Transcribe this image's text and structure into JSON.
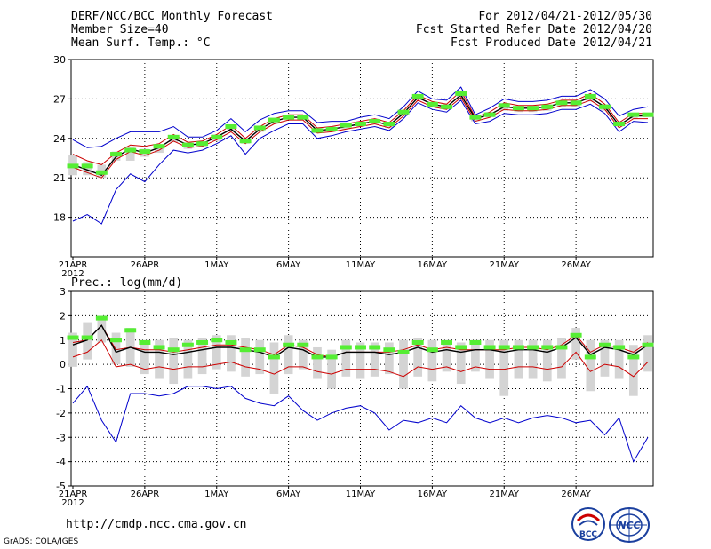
{
  "header": {
    "line1": "DERF/NCC/BCC Monthly Forecast",
    "line2": "Member Size=40",
    "line3": "Mean Surf. Temp.: °C",
    "right1": "For 2012/04/21-2012/05/30",
    "right2": "Fcst Started Refer Date 2012/04/20",
    "right3": "Fcst Produced Date 2012/04/21"
  },
  "footer": {
    "url": "http://cmdp.ncc.cma.gov.cn",
    "credit": "GrADS: COLA/IGES",
    "logo_left_text": "BCC",
    "logo_right_text": "NCC"
  },
  "colors": {
    "max_min": "#0000cc",
    "upper_lower": "#cc0000",
    "mean": "#000000",
    "member_bar": "#d4d4d4",
    "marker": "#55ee33",
    "grid": "#000000"
  },
  "chart_data": [
    {
      "type": "line",
      "title": "",
      "xlabel": "",
      "ylabel": "",
      "ylim": [
        15,
        30
      ],
      "yticks": [
        18,
        21,
        24,
        27,
        30
      ],
      "ytick_labels": [
        "18",
        "21",
        "24",
        "27",
        "30"
      ],
      "xticks": [
        0,
        5,
        10,
        15,
        20,
        25,
        30,
        35
      ],
      "xtick_labels": [
        "21APR",
        "26APR",
        "1MAY",
        "6MAY",
        "11MAY",
        "16MAY",
        "21MAY",
        "26MAY"
      ],
      "year_label": "2012",
      "days": 40,
      "series": [
        {
          "name": "max",
          "color": "#0000cc",
          "values": [
            23.9,
            23.3,
            23.4,
            24.0,
            24.5,
            24.5,
            24.5,
            24.9,
            24.1,
            24.1,
            24.6,
            25.5,
            24.5,
            25.4,
            25.9,
            26.1,
            26.1,
            25.2,
            25.3,
            25.3,
            25.6,
            25.8,
            25.5,
            26.4,
            27.6,
            27.0,
            26.9,
            27.9,
            25.8,
            26.3,
            27.0,
            26.8,
            26.8,
            26.9,
            27.2,
            27.2,
            27.7,
            27.0,
            25.7,
            26.2,
            26.4
          ]
        },
        {
          "name": "upper",
          "color": "#cc0000",
          "values": [
            22.8,
            22.3,
            22.0,
            22.9,
            23.5,
            23.4,
            23.6,
            24.3,
            23.7,
            23.8,
            24.3,
            25.0,
            24.0,
            24.9,
            25.5,
            25.8,
            25.8,
            24.8,
            24.9,
            25.1,
            25.3,
            25.5,
            25.2,
            26.1,
            27.3,
            26.8,
            26.6,
            27.6,
            25.6,
            26.0,
            26.7,
            26.5,
            26.5,
            26.6,
            26.9,
            26.9,
            27.4,
            26.6,
            25.2,
            25.9,
            25.9
          ]
        },
        {
          "name": "mean",
          "color": "#000000",
          "values": [
            22.0,
            21.6,
            21.2,
            22.6,
            23.2,
            22.9,
            23.3,
            24.0,
            23.5,
            23.6,
            24.1,
            24.7,
            23.8,
            24.7,
            25.3,
            25.6,
            25.6,
            24.6,
            24.7,
            24.9,
            25.1,
            25.3,
            25.0,
            25.9,
            27.1,
            26.6,
            26.4,
            27.3,
            25.5,
            25.8,
            26.4,
            26.3,
            26.3,
            26.4,
            26.7,
            26.7,
            27.1,
            26.4,
            25.0,
            25.7,
            25.7
          ]
        },
        {
          "name": "lower",
          "color": "#cc0000",
          "values": [
            21.8,
            21.4,
            21.0,
            22.4,
            23.0,
            22.7,
            23.1,
            23.8,
            23.3,
            23.4,
            23.9,
            24.5,
            23.6,
            24.5,
            25.1,
            25.4,
            25.4,
            24.4,
            24.5,
            24.7,
            24.9,
            25.1,
            24.8,
            25.7,
            26.9,
            26.4,
            26.2,
            27.1,
            25.3,
            25.6,
            26.2,
            26.1,
            26.1,
            26.2,
            26.5,
            26.5,
            26.9,
            26.2,
            24.8,
            25.5,
            25.5
          ]
        },
        {
          "name": "min",
          "color": "#0000cc",
          "values": [
            17.7,
            18.2,
            17.5,
            20.1,
            21.3,
            20.7,
            22.0,
            23.1,
            22.9,
            23.1,
            23.6,
            24.2,
            22.8,
            24.0,
            24.6,
            25.1,
            25.1,
            24.0,
            24.2,
            24.5,
            24.7,
            24.9,
            24.6,
            25.5,
            26.7,
            26.2,
            26.0,
            26.9,
            25.1,
            25.3,
            25.9,
            25.8,
            25.8,
            25.9,
            26.2,
            26.2,
            26.6,
            25.9,
            24.5,
            25.3,
            25.2
          ]
        }
      ],
      "bars_low": [
        21.2,
        21.2,
        21.0,
        22.3,
        22.3,
        22.6,
        22.9,
        23.7,
        23.2,
        23.4,
        23.8,
        24.6,
        23.6,
        24.5,
        25.1,
        25.4,
        25.4,
        24.4,
        24.5,
        24.7,
        24.9,
        25.1,
        24.8,
        25.7,
        26.9,
        26.4,
        26.2,
        27.0,
        25.3,
        25.6,
        26.1,
        26.0,
        26.0,
        26.1,
        26.4,
        26.4,
        26.8,
        26.1,
        24.9,
        25.5,
        25.6
      ],
      "bars_high": [
        22.7,
        22.2,
        22.0,
        23.0,
        23.4,
        23.2,
        23.5,
        24.2,
        23.7,
        23.8,
        24.3,
        25.0,
        24.0,
        24.9,
        25.5,
        25.8,
        25.8,
        24.8,
        24.9,
        25.1,
        25.3,
        25.5,
        25.2,
        26.1,
        27.2,
        26.7,
        26.6,
        27.5,
        25.7,
        26.0,
        26.6,
        26.5,
        26.5,
        26.6,
        26.9,
        26.9,
        27.3,
        26.6,
        25.3,
        25.9,
        25.9
      ],
      "markers": [
        21.9,
        21.9,
        21.4,
        22.8,
        23.1,
        23.0,
        23.4,
        24.1,
        23.5,
        23.6,
        24.1,
        24.9,
        23.8,
        24.8,
        25.4,
        25.6,
        25.6,
        24.6,
        24.7,
        25.0,
        25.1,
        25.3,
        25.1,
        26.0,
        27.2,
        26.6,
        26.4,
        27.4,
        25.6,
        25.8,
        26.5,
        26.3,
        26.3,
        26.4,
        26.7,
        26.7,
        27.2,
        26.4,
        25.1,
        25.8,
        25.8
      ]
    },
    {
      "type": "line",
      "title": "Prec.: log(mm/d)",
      "xlabel": "",
      "ylabel": "",
      "ylim": [
        -5,
        3
      ],
      "yticks": [
        -5,
        -4,
        -3,
        -2,
        -1,
        0,
        1,
        2,
        3
      ],
      "ytick_labels": [
        "-5",
        "-4",
        "-3",
        "-2",
        "-1",
        "0",
        "1",
        "2",
        "3"
      ],
      "xticks": [
        0,
        5,
        10,
        15,
        20,
        25,
        30,
        35
      ],
      "xtick_labels": [
        "21APR",
        "26APR",
        "1MAY",
        "6MAY",
        "11MAY",
        "16MAY",
        "21MAY",
        "26MAY"
      ],
      "year_label": "2012",
      "days": 40,
      "series": [
        {
          "name": "max",
          "color": "#0000cc",
          "values": [
            -1.6,
            -0.9,
            -2.3,
            -3.2,
            -1.2,
            -1.2,
            -1.3,
            -1.2,
            -0.9,
            -0.9,
            -1.0,
            -0.9,
            -1.4,
            -1.6,
            -1.7,
            -1.3,
            -1.9,
            -2.3,
            -2.0,
            -1.8,
            -1.7,
            -2.0,
            -2.7,
            -2.3,
            -2.4,
            -2.2,
            -2.4,
            -1.7,
            -2.2,
            -2.4,
            -2.2,
            -2.4,
            -2.2,
            -2.1,
            -2.2,
            -2.4,
            -2.3,
            -2.9,
            -2.2,
            -4.0,
            -3.0
          ]
        },
        {
          "name": "upper",
          "color": "#cc0000",
          "values": [
            0.9,
            1.0,
            1.6,
            0.6,
            0.7,
            0.6,
            0.6,
            0.5,
            0.6,
            0.7,
            0.8,
            0.8,
            0.7,
            0.6,
            0.4,
            0.8,
            0.7,
            0.4,
            0.3,
            0.5,
            0.5,
            0.5,
            0.5,
            0.6,
            0.8,
            0.6,
            0.7,
            0.6,
            0.6,
            0.6,
            0.6,
            0.7,
            0.7,
            0.6,
            0.8,
            1.2,
            0.5,
            0.8,
            0.7,
            0.5,
            0.9
          ]
        },
        {
          "name": "mean",
          "color": "#000000",
          "values": [
            0.8,
            1.0,
            1.6,
            0.5,
            0.7,
            0.5,
            0.5,
            0.4,
            0.5,
            0.6,
            0.7,
            0.7,
            0.6,
            0.5,
            0.3,
            0.7,
            0.6,
            0.3,
            0.3,
            0.5,
            0.5,
            0.5,
            0.4,
            0.5,
            0.7,
            0.5,
            0.6,
            0.5,
            0.6,
            0.6,
            0.5,
            0.6,
            0.6,
            0.5,
            0.7,
            1.1,
            0.4,
            0.7,
            0.6,
            0.4,
            0.8
          ]
        },
        {
          "name": "lower",
          "color": "#cc0000",
          "values": [
            0.3,
            0.5,
            1.0,
            -0.1,
            0.0,
            -0.2,
            -0.1,
            -0.2,
            -0.1,
            -0.1,
            0.0,
            0.1,
            -0.1,
            -0.2,
            -0.4,
            -0.1,
            -0.1,
            -0.3,
            -0.4,
            -0.2,
            -0.2,
            -0.2,
            -0.3,
            -0.5,
            -0.1,
            -0.2,
            -0.1,
            -0.3,
            -0.1,
            -0.2,
            -0.2,
            -0.1,
            -0.1,
            -0.2,
            -0.1,
            0.5,
            -0.3,
            0.0,
            -0.1,
            -0.5,
            0.1
          ]
        },
        {
          "name": "min",
          "color": "#cc0000",
          "hidden": true,
          "values": []
        }
      ],
      "bars_low": [
        -0.1,
        0.2,
        0.9,
        0.0,
        -0.1,
        -0.4,
        -0.6,
        -0.8,
        -0.6,
        -0.4,
        -0.2,
        -0.3,
        -0.5,
        -0.4,
        -1.2,
        -0.4,
        -0.2,
        -0.6,
        -1.0,
        -0.5,
        -0.6,
        -0.5,
        -0.4,
        -1.0,
        -0.5,
        -0.7,
        -0.3,
        -0.8,
        -0.3,
        -0.6,
        -1.3,
        -0.6,
        -0.6,
        -0.7,
        -0.6,
        0.2,
        -1.1,
        -0.5,
        -0.6,
        -1.3,
        -0.3
      ],
      "bars_high": [
        1.3,
        1.7,
        2.0,
        1.3,
        1.5,
        1.0,
        1.0,
        1.1,
        1.0,
        1.1,
        1.2,
        1.2,
        1.1,
        1.0,
        0.9,
        1.2,
        1.0,
        0.7,
        0.6,
        1.0,
        0.9,
        0.9,
        0.9,
        1.0,
        1.1,
        1.0,
        1.0,
        0.9,
        1.0,
        1.0,
        1.0,
        1.0,
        1.0,
        1.0,
        1.1,
        1.5,
        1.0,
        1.0,
        1.0,
        0.8,
        1.2
      ],
      "markers": [
        1.1,
        1.1,
        1.9,
        1.0,
        1.4,
        0.9,
        0.7,
        0.6,
        0.8,
        0.9,
        1.0,
        0.9,
        0.6,
        0.6,
        0.3,
        0.8,
        0.8,
        0.3,
        0.3,
        0.7,
        0.7,
        0.7,
        0.6,
        0.5,
        0.9,
        0.6,
        0.9,
        0.7,
        0.9,
        0.7,
        0.7,
        0.7,
        0.7,
        0.7,
        0.7,
        1.2,
        0.3,
        0.8,
        0.7,
        0.3,
        0.8
      ]
    }
  ]
}
